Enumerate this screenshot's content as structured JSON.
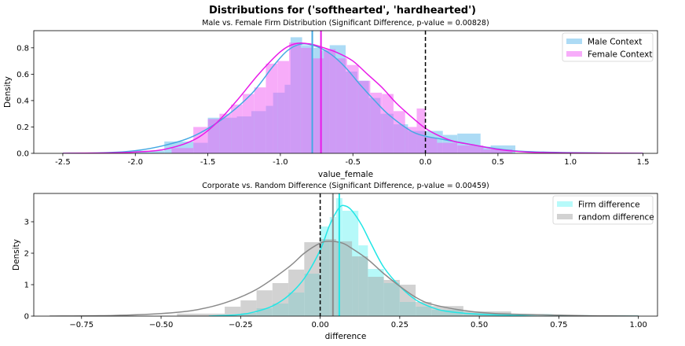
{
  "figure": {
    "suptitle": "Distributions for ('softhearted', 'hardhearted')"
  },
  "chart_data": [
    {
      "type": "histogram-kde",
      "title": "Male vs. Female Firm Distribution (Significant Difference, p-value = 0.00828)",
      "xlabel": "value_female",
      "ylabel": "Density",
      "xlim": [
        -2.7,
        1.6
      ],
      "ylim": [
        0,
        0.93
      ],
      "xticks": [
        "-2.5",
        "-2.0",
        "-1.5",
        "-1.0",
        "-0.5",
        "0.0",
        "0.5",
        "1.0",
        "1.5"
      ],
      "xtick_values": [
        -2.5,
        -2.0,
        -1.5,
        -1.0,
        -0.5,
        0.0,
        0.5,
        1.0,
        1.5
      ],
      "yticks": [
        "0.0",
        "0.2",
        "0.4",
        "0.6",
        "0.8"
      ],
      "ytick_values": [
        0.0,
        0.2,
        0.4,
        0.6,
        0.8
      ],
      "legend_position": "top-right",
      "series": [
        {
          "name": "Male Context",
          "color": "#5bb8ec",
          "kde_color": "#45a9e3",
          "hist": [
            [
              -2.0,
              -1.8,
              0.02
            ],
            [
              -1.8,
              -1.6,
              0.09
            ],
            [
              -1.6,
              -1.5,
              0.08
            ],
            [
              -1.5,
              -1.3,
              0.27
            ],
            [
              -1.3,
              -1.2,
              0.28
            ],
            [
              -1.2,
              -1.1,
              0.32
            ],
            [
              -1.1,
              -1.05,
              0.36
            ],
            [
              -1.05,
              -0.97,
              0.46
            ],
            [
              -0.97,
              -0.93,
              0.52
            ],
            [
              -0.93,
              -0.85,
              0.88
            ],
            [
              -0.85,
              -0.77,
              0.82
            ],
            [
              -0.77,
              -0.72,
              0.8
            ],
            [
              -0.72,
              -0.66,
              0.78
            ],
            [
              -0.66,
              -0.55,
              0.82
            ],
            [
              -0.55,
              -0.47,
              0.62
            ],
            [
              -0.47,
              -0.39,
              0.55
            ],
            [
              -0.39,
              -0.31,
              0.42
            ],
            [
              -0.31,
              -0.22,
              0.3
            ],
            [
              -0.22,
              -0.12,
              0.22
            ],
            [
              -0.12,
              0.0,
              0.17
            ],
            [
              0.0,
              0.12,
              0.17
            ],
            [
              0.12,
              0.22,
              0.14
            ],
            [
              0.22,
              0.38,
              0.15
            ],
            [
              0.38,
              0.45,
              0.05
            ],
            [
              0.45,
              0.62,
              0.06
            ]
          ],
          "kde": [
            [
              -2.5,
              0.0
            ],
            [
              -2.2,
              0.005
            ],
            [
              -2.0,
              0.02
            ],
            [
              -1.8,
              0.06
            ],
            [
              -1.6,
              0.13
            ],
            [
              -1.4,
              0.26
            ],
            [
              -1.2,
              0.45
            ],
            [
              -1.05,
              0.66
            ],
            [
              -0.95,
              0.78
            ],
            [
              -0.85,
              0.83
            ],
            [
              -0.75,
              0.81
            ],
            [
              -0.65,
              0.75
            ],
            [
              -0.55,
              0.65
            ],
            [
              -0.45,
              0.52
            ],
            [
              -0.35,
              0.4
            ],
            [
              -0.25,
              0.29
            ],
            [
              -0.1,
              0.17
            ],
            [
              0.0,
              0.13
            ],
            [
              0.1,
              0.11
            ],
            [
              0.2,
              0.09
            ],
            [
              0.3,
              0.07
            ],
            [
              0.4,
              0.05
            ],
            [
              0.6,
              0.02
            ],
            [
              0.8,
              0.01
            ],
            [
              1.0,
              0.005
            ],
            [
              1.5,
              0.0
            ]
          ],
          "mean_line": -0.78
        },
        {
          "name": "Female Context",
          "color": "#f05cf5",
          "kde_color": "#e81ae8",
          "hist": [
            [
              -1.75,
              -1.6,
              0.04
            ],
            [
              -1.6,
              -1.5,
              0.2
            ],
            [
              -1.5,
              -1.42,
              0.26
            ],
            [
              -1.42,
              -1.34,
              0.3
            ],
            [
              -1.34,
              -1.26,
              0.37
            ],
            [
              -1.26,
              -1.18,
              0.45
            ],
            [
              -1.18,
              -1.1,
              0.5
            ],
            [
              -1.1,
              -1.02,
              0.68
            ],
            [
              -1.02,
              -0.94,
              0.7
            ],
            [
              -0.94,
              -0.86,
              0.84
            ],
            [
              -0.86,
              -0.78,
              0.8
            ],
            [
              -0.78,
              -0.7,
              0.72
            ],
            [
              -0.7,
              -0.62,
              0.79
            ],
            [
              -0.62,
              -0.54,
              0.72
            ],
            [
              -0.54,
              -0.46,
              0.67
            ],
            [
              -0.46,
              -0.38,
              0.55
            ],
            [
              -0.38,
              -0.3,
              0.46
            ],
            [
              -0.3,
              -0.22,
              0.45
            ],
            [
              -0.22,
              -0.14,
              0.32
            ],
            [
              -0.14,
              -0.06,
              0.2
            ],
            [
              -0.06,
              0.0,
              0.34
            ],
            [
              0.0,
              0.08,
              0.12
            ],
            [
              0.08,
              0.22,
              0.08
            ],
            [
              0.22,
              0.4,
              0.06
            ],
            [
              0.4,
              0.6,
              0.03
            ]
          ],
          "kde": [
            [
              -2.5,
              0.0
            ],
            [
              -2.2,
              0.003
            ],
            [
              -2.0,
              0.01
            ],
            [
              -1.8,
              0.03
            ],
            [
              -1.6,
              0.1
            ],
            [
              -1.45,
              0.22
            ],
            [
              -1.3,
              0.4
            ],
            [
              -1.15,
              0.6
            ],
            [
              -1.0,
              0.77
            ],
            [
              -0.9,
              0.83
            ],
            [
              -0.8,
              0.83
            ],
            [
              -0.7,
              0.8
            ],
            [
              -0.6,
              0.76
            ],
            [
              -0.5,
              0.7
            ],
            [
              -0.4,
              0.6
            ],
            [
              -0.3,
              0.5
            ],
            [
              -0.2,
              0.38
            ],
            [
              -0.1,
              0.28
            ],
            [
              0.0,
              0.19
            ],
            [
              0.1,
              0.13
            ],
            [
              0.2,
              0.09
            ],
            [
              0.35,
              0.06
            ],
            [
              0.5,
              0.03
            ],
            [
              0.7,
              0.01
            ],
            [
              1.0,
              0.003
            ],
            [
              1.5,
              0.0
            ]
          ],
          "mean_line": -0.72
        }
      ],
      "reference_line": 0.0
    },
    {
      "type": "histogram-kde",
      "title": "Corporate vs. Random Difference (Significant Difference, p-value = 0.00459)",
      "xlabel": "difference",
      "ylabel": "Density",
      "xlim": [
        -0.9,
        1.06
      ],
      "ylim": [
        0,
        3.9
      ],
      "xticks": [
        "−0.75",
        "−0.50",
        "−0.25",
        "0.00",
        "0.25",
        "0.50",
        "0.75",
        "1.00"
      ],
      "xtick_values": [
        -0.75,
        -0.5,
        -0.25,
        0.0,
        0.25,
        0.5,
        0.75,
        1.0
      ],
      "yticks": [
        "0",
        "1",
        "2",
        "3"
      ],
      "ytick_values": [
        0,
        1,
        2,
        3
      ],
      "legend_position": "top-right",
      "series": [
        {
          "name": "Firm difference",
          "color": "#6ff5f5",
          "kde_color": "#22e6e6",
          "hist": [
            [
              -0.25,
              -0.2,
              0.1
            ],
            [
              -0.2,
              -0.15,
              0.25
            ],
            [
              -0.15,
              -0.1,
              0.4
            ],
            [
              -0.1,
              -0.05,
              0.75
            ],
            [
              -0.05,
              0.0,
              1.35
            ],
            [
              0.0,
              0.03,
              2.85
            ],
            [
              0.03,
              0.05,
              3.15
            ],
            [
              0.05,
              0.07,
              3.75
            ],
            [
              0.07,
              0.12,
              3.35
            ],
            [
              0.12,
              0.15,
              2.25
            ],
            [
              0.15,
              0.2,
              1.5
            ],
            [
              0.2,
              0.25,
              1.05
            ],
            [
              0.25,
              0.3,
              0.45
            ],
            [
              0.3,
              0.35,
              0.3
            ],
            [
              0.35,
              0.45,
              0.2
            ],
            [
              0.45,
              0.6,
              0.1
            ]
          ],
          "kde": [
            [
              -0.35,
              0.0
            ],
            [
              -0.25,
              0.05
            ],
            [
              -0.2,
              0.15
            ],
            [
              -0.15,
              0.32
            ],
            [
              -0.1,
              0.65
            ],
            [
              -0.05,
              1.2
            ],
            [
              0.0,
              2.1
            ],
            [
              0.03,
              2.9
            ],
            [
              0.06,
              3.45
            ],
            [
              0.08,
              3.5
            ],
            [
              0.1,
              3.35
            ],
            [
              0.13,
              2.9
            ],
            [
              0.16,
              2.3
            ],
            [
              0.2,
              1.55
            ],
            [
              0.25,
              0.95
            ],
            [
              0.3,
              0.52
            ],
            [
              0.35,
              0.28
            ],
            [
              0.4,
              0.15
            ],
            [
              0.5,
              0.06
            ],
            [
              0.6,
              0.03
            ],
            [
              0.7,
              0.04
            ],
            [
              0.8,
              0.01
            ],
            [
              1.0,
              0.0
            ]
          ],
          "mean_line": 0.06
        },
        {
          "name": "random difference",
          "color": "#a6a6a6",
          "kde_color": "#8a8a8a",
          "hist": [
            [
              -0.45,
              -0.3,
              0.08
            ],
            [
              -0.3,
              -0.25,
              0.3
            ],
            [
              -0.25,
              -0.2,
              0.5
            ],
            [
              -0.2,
              -0.15,
              0.82
            ],
            [
              -0.15,
              -0.1,
              1.05
            ],
            [
              -0.1,
              -0.05,
              1.48
            ],
            [
              -0.05,
              0.0,
              2.35
            ],
            [
              0.0,
              0.05,
              2.45
            ],
            [
              0.05,
              0.1,
              2.38
            ],
            [
              0.1,
              0.15,
              1.9
            ],
            [
              0.15,
              0.2,
              1.25
            ],
            [
              0.2,
              0.25,
              1.15
            ],
            [
              0.25,
              0.3,
              1.0
            ],
            [
              0.3,
              0.35,
              0.45
            ],
            [
              0.35,
              0.45,
              0.32
            ],
            [
              0.45,
              0.6,
              0.15
            ]
          ],
          "kde": [
            [
              -0.85,
              0.0
            ],
            [
              -0.65,
              0.02
            ],
            [
              -0.5,
              0.08
            ],
            [
              -0.4,
              0.18
            ],
            [
              -0.3,
              0.42
            ],
            [
              -0.2,
              0.85
            ],
            [
              -0.1,
              1.55
            ],
            [
              -0.05,
              2.0
            ],
            [
              0.0,
              2.32
            ],
            [
              0.03,
              2.38
            ],
            [
              0.07,
              2.32
            ],
            [
              0.1,
              2.15
            ],
            [
              0.15,
              1.8
            ],
            [
              0.2,
              1.35
            ],
            [
              0.25,
              0.95
            ],
            [
              0.3,
              0.6
            ],
            [
              0.35,
              0.38
            ],
            [
              0.45,
              0.18
            ],
            [
              0.55,
              0.08
            ],
            [
              0.7,
              0.04
            ],
            [
              0.85,
              0.01
            ],
            [
              1.0,
              0.0
            ]
          ],
          "mean_line": 0.04
        }
      ],
      "reference_line": 0.0
    }
  ]
}
